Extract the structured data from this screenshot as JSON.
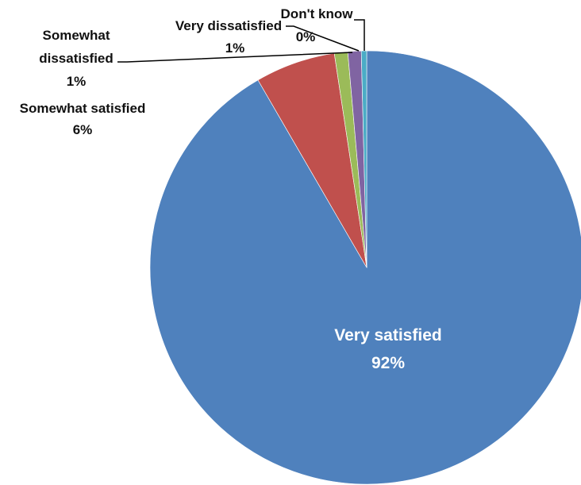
{
  "chart_data": {
    "type": "pie",
    "title": "",
    "unit": "%",
    "slices": [
      {
        "label": "Very satisfied",
        "value": 92,
        "display": "92%",
        "color": "#4f81bd"
      },
      {
        "label": "Somewhat satisfied",
        "value": 6,
        "display": "6%",
        "color": "#c0504d"
      },
      {
        "label": "Somewhat dissatisfied",
        "value": 1,
        "display": "1%",
        "color": "#9bbb59"
      },
      {
        "label": "Very dissatisfied",
        "value": 1,
        "display": "1%",
        "color": "#8064a2"
      },
      {
        "label": "Don't know",
        "value": 0.4,
        "display": "0%",
        "color": "#4bacc6"
      }
    ],
    "start_angle_deg": 0,
    "direction": "clockwise",
    "legend": "none"
  }
}
